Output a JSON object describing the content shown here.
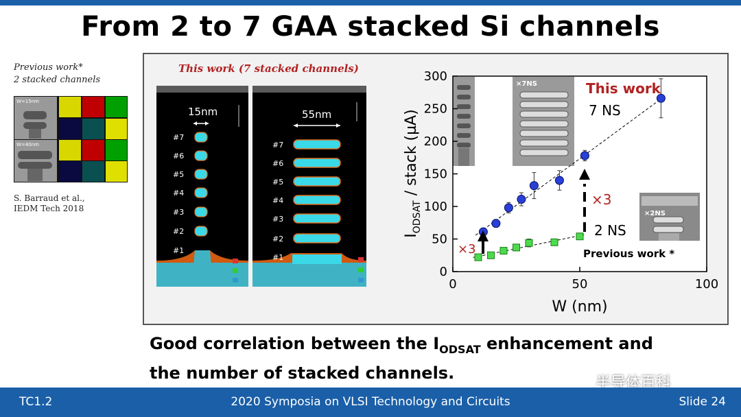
{
  "slide": {
    "title": "From 2 to 7 GAA stacked Si channels",
    "previous_work_caption_1": "Previous work*",
    "previous_work_caption_2": "2 stacked channels",
    "prev_img_labels": [
      "W=15nm",
      "W=40nm"
    ],
    "reference_1": "S. Barraud et al.,",
    "reference_2": "IEDM Tech 2018",
    "this_work_caption": "This work (7 stacked channels)",
    "tem_left_width": "15nm",
    "tem_right_width": "55nm",
    "channel_labels": [
      "#7",
      "#6",
      "#5",
      "#4",
      "#3",
      "#2",
      "#1"
    ],
    "caption_line1_a": "Good correlation between the I",
    "caption_line1_sub": "ODSAT",
    "caption_line1_b": " enhancement and",
    "caption_line2": "the number of stacked channels.",
    "footer_left": "TC1.2",
    "footer_center": "2020 Symposia on VLSI Technology and Circuits",
    "footer_right": "Slide 24",
    "watermark": "半导体百科"
  },
  "colors": {
    "accent": "#1a5fa8",
    "this_work": "#b22222",
    "series_7ns": "#2a3fd6",
    "series_2ns": "#4cdb4c",
    "cyan": "#3ad9e8"
  },
  "chart_data": {
    "type": "scatter",
    "xlabel": "W (nm)",
    "ylabel_main": "I",
    "ylabel_sub": "ODSAT",
    "ylabel_rest": " / stack (µA)",
    "xlim": [
      0,
      100
    ],
    "ylim": [
      0,
      300
    ],
    "xticks": [
      "0",
      "50",
      "100"
    ],
    "yticks": [
      "0",
      "50",
      "100",
      "150",
      "200",
      "250",
      "300"
    ],
    "series": [
      {
        "name": "7 NS",
        "x": [
          12,
          17,
          22,
          27,
          32,
          42,
          52,
          82
        ],
        "y": [
          61,
          74,
          98,
          111,
          132,
          140,
          178,
          266
        ],
        "err": [
          4,
          6,
          8,
          10,
          20,
          15,
          8,
          30
        ]
      },
      {
        "name": "2 NS",
        "x": [
          10,
          15,
          20,
          25,
          30,
          40,
          50
        ],
        "y": [
          22,
          25,
          32,
          37,
          44,
          45,
          54
        ],
        "err": [
          3,
          3,
          4,
          5,
          6,
          5,
          3
        ]
      }
    ],
    "annotations": {
      "this_work": "This work",
      "seven_ns": "7 NS",
      "two_ns": "2 NS",
      "previous_work": "Previous work *",
      "x3_left": "×3",
      "x3_right": "×3",
      "inset_7ns": "×7NS",
      "inset_2ns": "×2NS"
    }
  }
}
